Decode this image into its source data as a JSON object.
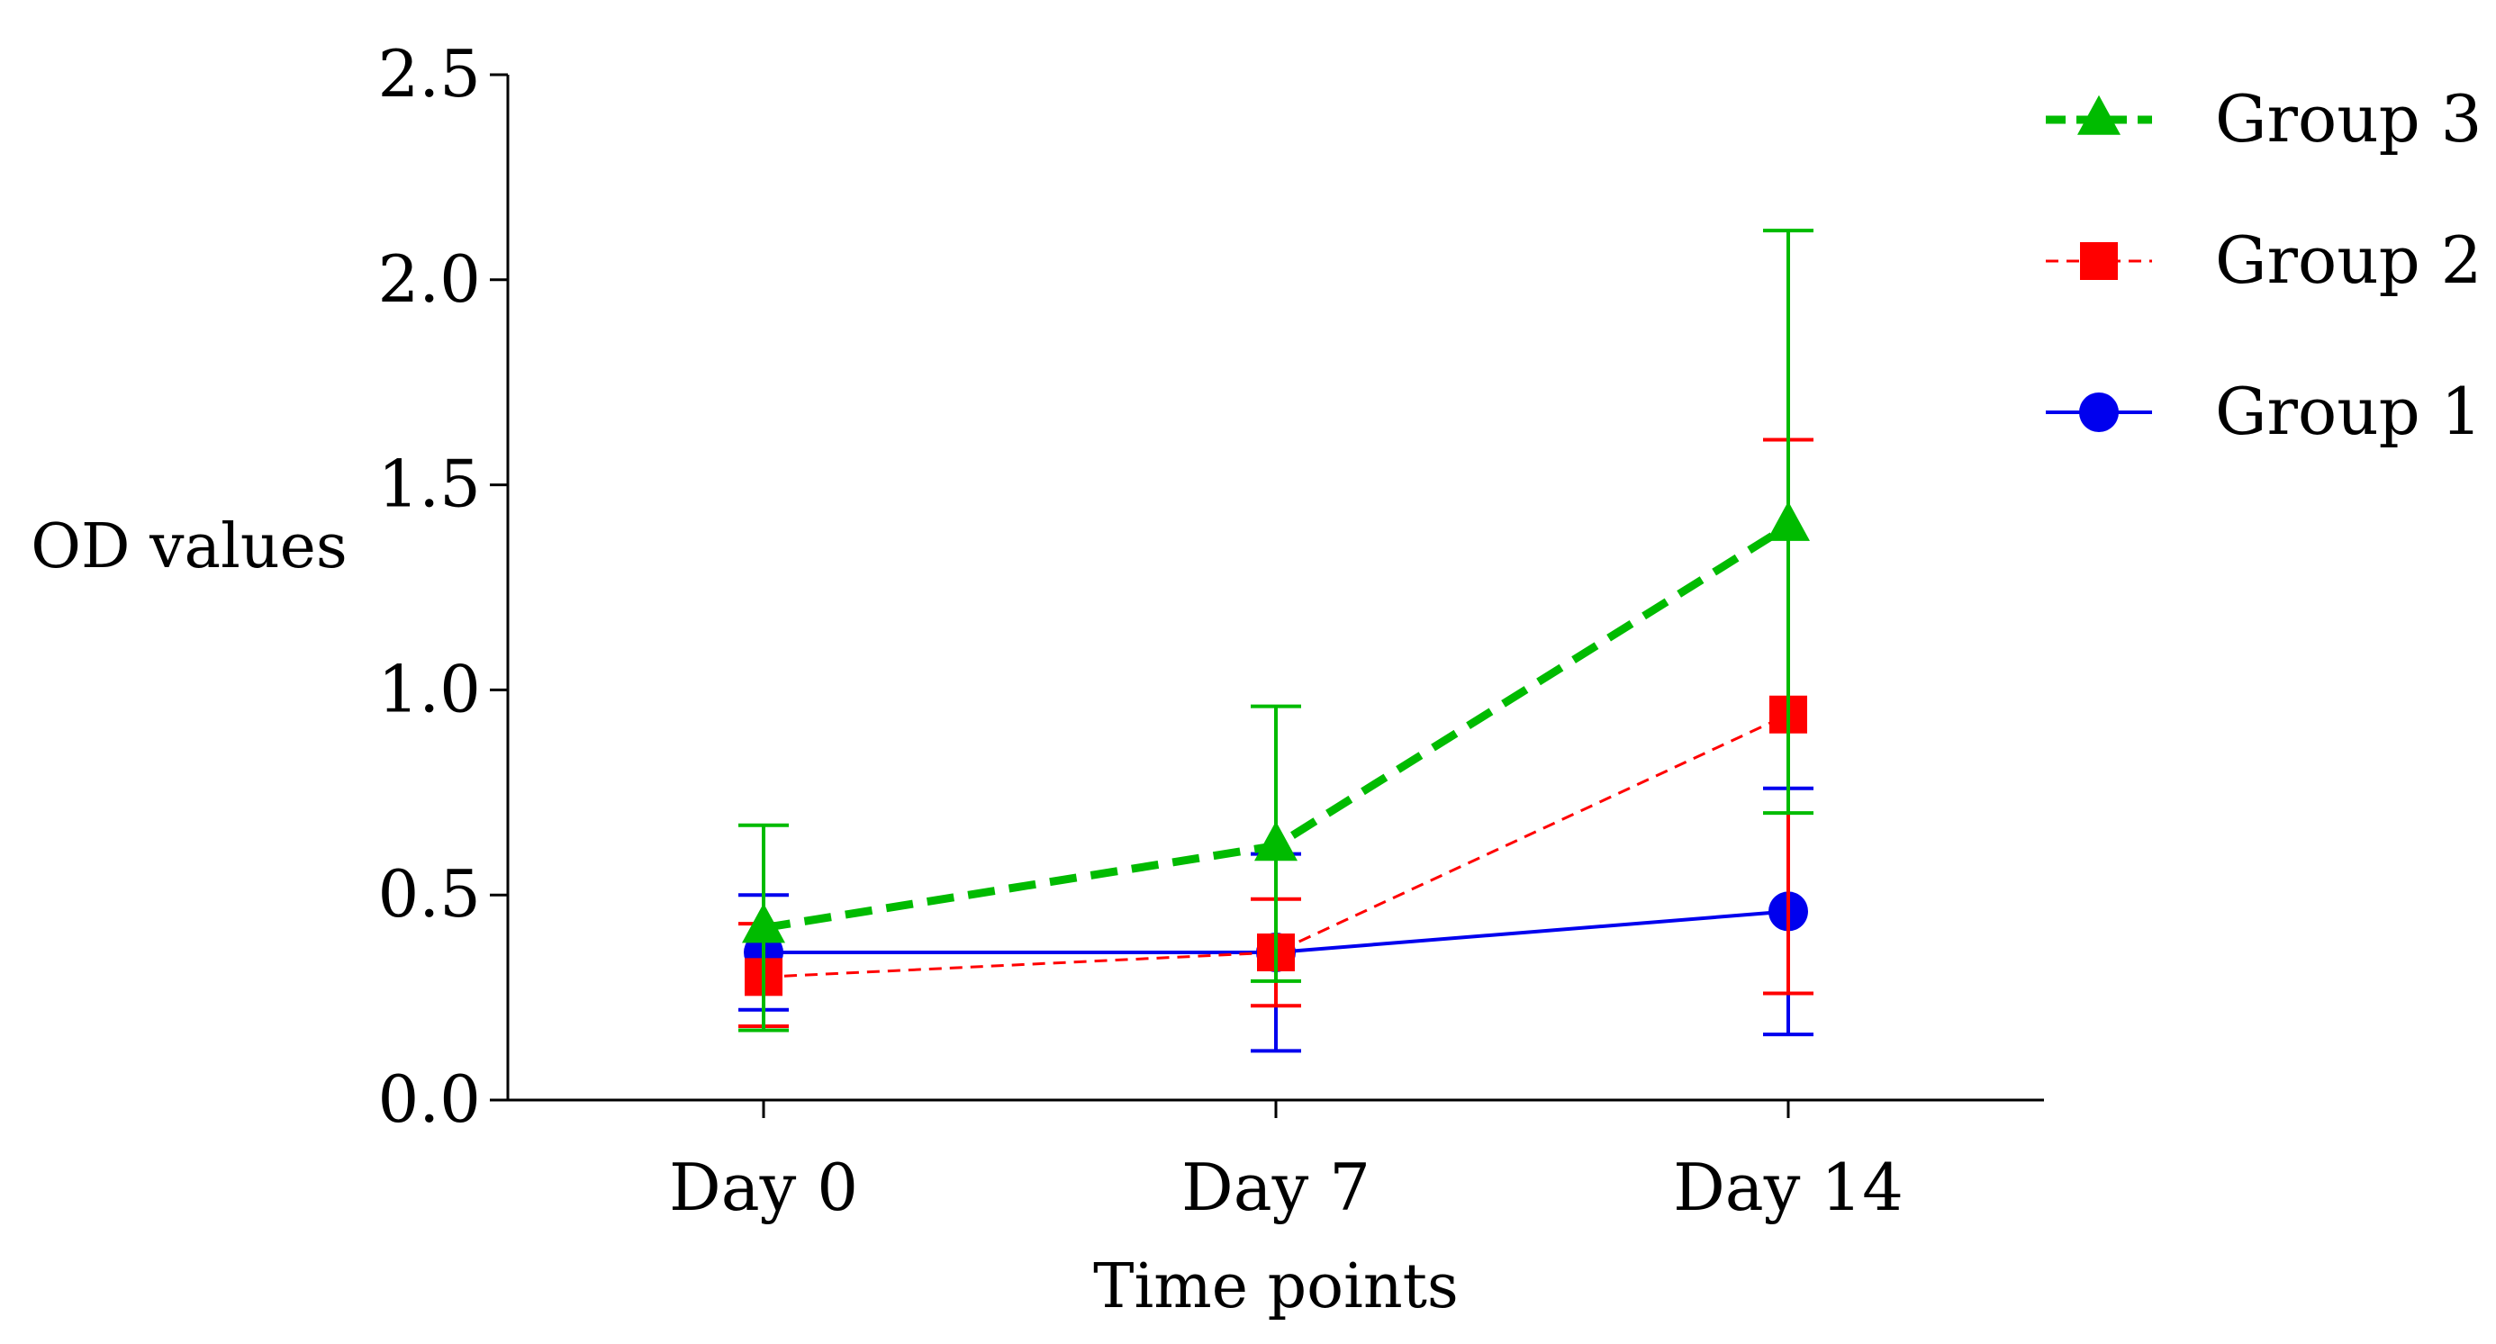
{
  "chart_data": {
    "type": "line",
    "title": "",
    "xlabel": "Time points",
    "ylabel": "OD values",
    "categories": [
      "Day 0",
      "Day 7",
      "Day 14"
    ],
    "ylim": [
      0,
      2.5
    ],
    "yticks": [
      "0.0",
      "0.5",
      "1.0",
      "1.5",
      "2.0",
      "2.5"
    ],
    "grid": false,
    "legend_position": "top-right",
    "legend_order": [
      "Group 3",
      "Group 2",
      "Group 1"
    ],
    "series": [
      {
        "name": "Group 1",
        "color": "#0000ee",
        "marker": "circle",
        "line_style": "solid",
        "values": [
          0.36,
          0.36,
          0.46
        ],
        "error_low": [
          0.22,
          0.12,
          0.16
        ],
        "error_high": [
          0.5,
          0.6,
          0.76
        ]
      },
      {
        "name": "Group 2",
        "color": "#ff0000",
        "marker": "square",
        "line_style": "dashed",
        "values": [
          0.3,
          0.36,
          0.94
        ],
        "error_low": [
          0.18,
          0.23,
          0.26
        ],
        "error_high": [
          0.43,
          0.49,
          1.61
        ]
      },
      {
        "name": "Group 3",
        "color": "#00bb00",
        "marker": "triangle",
        "line_style": "bold-dashed",
        "values": [
          0.42,
          0.62,
          1.4
        ],
        "error_low": [
          0.17,
          0.29,
          0.7
        ],
        "error_high": [
          0.67,
          0.96,
          2.12
        ]
      }
    ]
  }
}
